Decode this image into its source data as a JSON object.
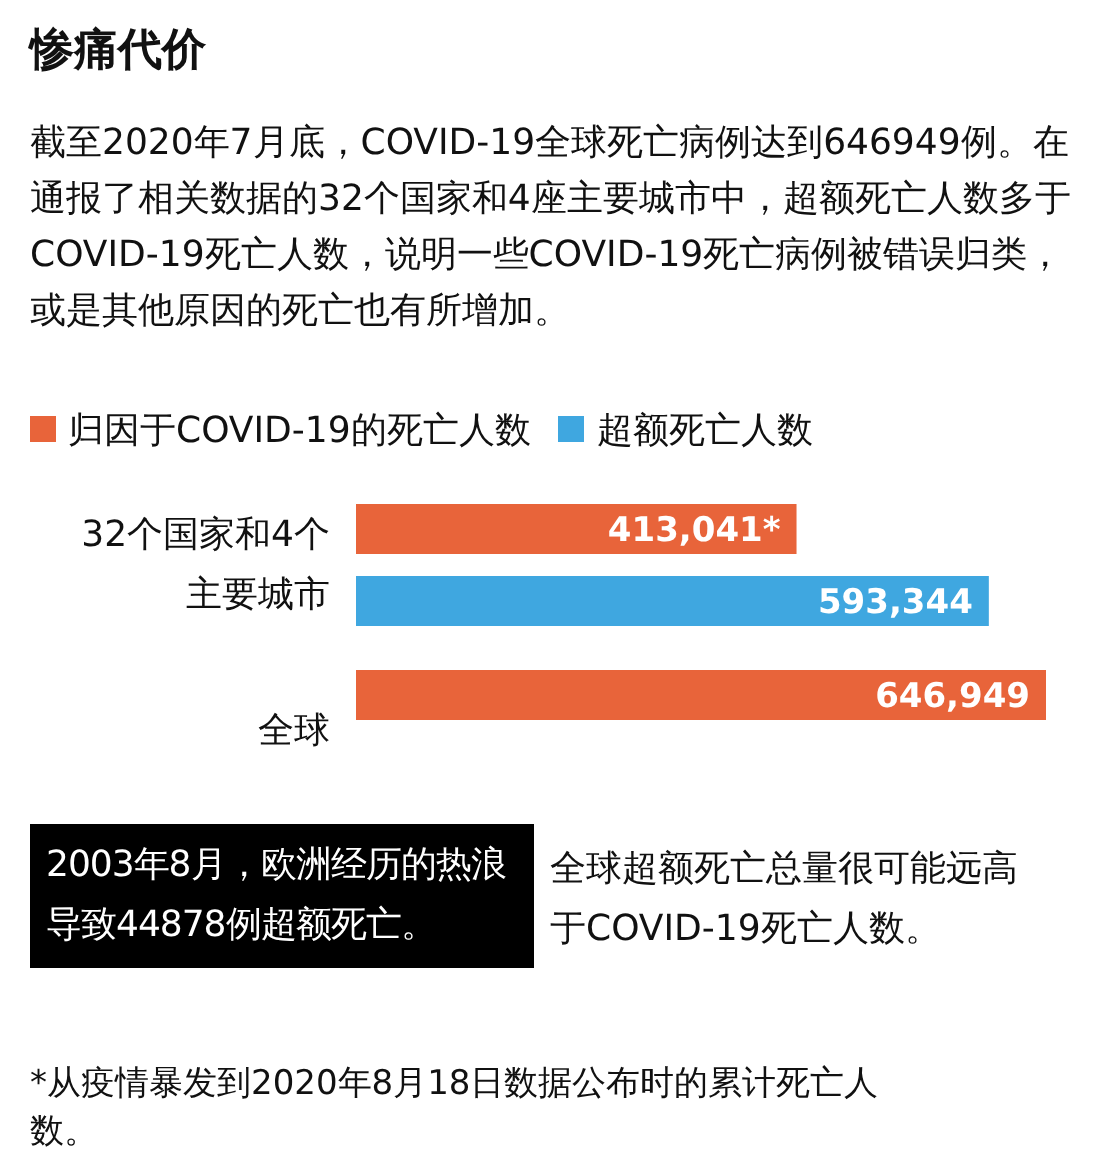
{
  "chart_data": {
    "type": "bar",
    "orientation": "horizontal",
    "title": "惨痛代价",
    "subtitle": "截至2020年7月底，COVID-19全球死亡病例达到646949例。在通报了相关数据的32个国家和4座主要城市中，超额死亡人数多于COVID-19死亡人数，说明一些COVID-19死亡病例被错误归类，或是其他原因的死亡也有所增加。",
    "categories": [
      "32个国家和4个主要城市",
      "全球"
    ],
    "series": [
      {
        "name": "归因于COVID-19的死亡人数",
        "color": "#e8643a",
        "values": [
          413041,
          646949
        ],
        "value_labels": [
          "413,041*",
          "646,949"
        ]
      },
      {
        "name": "超额死亡人数",
        "color": "#3fa7e0",
        "values": [
          593344,
          null
        ],
        "value_labels": [
          "593,344",
          null
        ]
      }
    ],
    "legend": "top left",
    "annotations": [
      "2003年8月，欧洲经历的热浪导致44878例超额死亡。",
      "全球超额死亡总量很可能远高于COVID-19死亡人数。",
      "*从疫情暴发到2020年8月18日数据公布时的累计死亡人数。"
    ]
  }
}
